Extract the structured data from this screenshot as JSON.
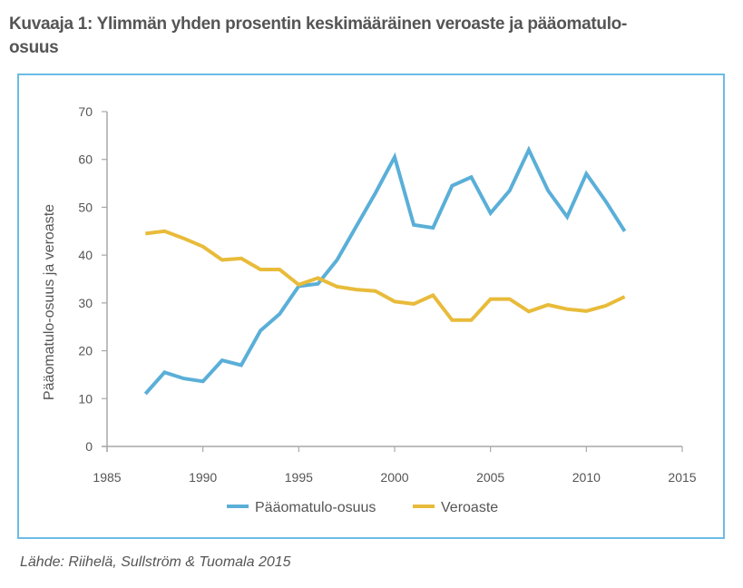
{
  "title": "Kuvaaja 1: Ylimmän yhden prosentin keskimääräinen veroaste ja pääomatulo-osuus",
  "source": "Lähde: Riihelä, Sullström & Tuomala 2015",
  "colors": {
    "frame": "#6bbde6",
    "paaomatulo": "#5aafd8",
    "veroaste": "#e8bb3a",
    "text": "#555555",
    "axis": "#a8a8a8"
  },
  "chart_data": {
    "type": "line",
    "title": "Kuvaaja 1: Ylimmän yhden prosentin keskimääräinen veroaste ja pääomatulo-osuus",
    "xlabel": "",
    "ylabel": "Pääomatulo-osuus ja veroaste",
    "xlim": [
      1985,
      2015
    ],
    "ylim": [
      0,
      70
    ],
    "xticks": [
      1985,
      1990,
      1995,
      2000,
      2005,
      2010,
      2015
    ],
    "yticks": [
      0,
      10,
      20,
      30,
      40,
      50,
      60,
      70
    ],
    "grid": false,
    "legend_position": "bottom-center",
    "x": [
      1987,
      1988,
      1989,
      1990,
      1991,
      1992,
      1993,
      1994,
      1995,
      1996,
      1997,
      1998,
      1999,
      2000,
      2001,
      2002,
      2003,
      2004,
      2005,
      2006,
      2007,
      2008,
      2009,
      2010,
      2011,
      2012
    ],
    "series": [
      {
        "name": "Pääomatulo-osuus",
        "color": "#5aafd8",
        "values": [
          11.0,
          15.5,
          14.2,
          13.6,
          18.0,
          17.0,
          24.2,
          27.7,
          33.5,
          34.0,
          39.0,
          46.0,
          53.0,
          60.5,
          46.3,
          45.7,
          54.5,
          56.3,
          48.8,
          53.5,
          62.0,
          53.5,
          48.0,
          57.0,
          51.3,
          45.0
        ]
      },
      {
        "name": "Veroaste",
        "color": "#e8bb3a",
        "values": [
          44.5,
          45.0,
          43.5,
          41.8,
          39.0,
          39.3,
          37.0,
          37.0,
          33.8,
          35.2,
          33.4,
          32.8,
          32.5,
          30.3,
          29.8,
          31.6,
          26.4,
          26.4,
          30.8,
          30.8,
          28.2,
          29.6,
          28.7,
          28.3,
          29.4,
          31.3
        ]
      }
    ]
  }
}
